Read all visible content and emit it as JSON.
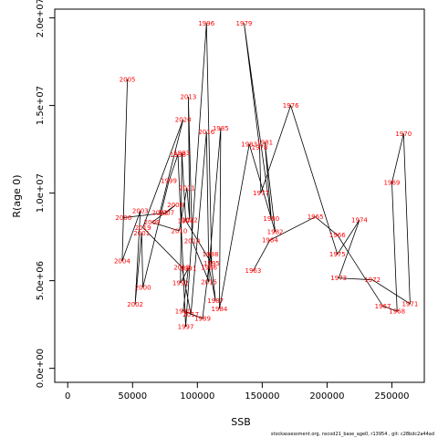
{
  "chart_data": {
    "type": "line",
    "title": "",
    "xlabel": "SSB",
    "ylabel": "R(age 0)",
    "xlim": [
      -10000,
      275000
    ],
    "ylim": [
      -800000,
      20500000
    ],
    "x_ticks": [
      0,
      50000,
      100000,
      150000,
      200000,
      250000
    ],
    "x_tick_labels": [
      "0",
      "50000",
      "100000",
      "150000",
      "200000",
      "250000"
    ],
    "y_ticks": [
      0,
      5000000,
      10000000,
      15000000,
      20000000
    ],
    "y_tick_labels": [
      "0.0e+00",
      "5.0e+06",
      "1.0e+07",
      "1.5e+07",
      "2.0e+07"
    ],
    "grid": false,
    "line_color": "#000000",
    "label_color": "#ff0000",
    "footer": "stockassessment.org, nscod21_base_age0, r13954 , git: c28bdc2a44ad",
    "series": [
      {
        "points": [
          {
            "year": "1963",
            "x": 143000,
            "y": 5570000
          },
          {
            "year": "1964",
            "x": 156000,
            "y": 7320000
          },
          {
            "year": "1965",
            "x": 191000,
            "y": 8640000
          },
          {
            "year": "1966",
            "x": 208000,
            "y": 7600000
          },
          {
            "year": "1967",
            "x": 243000,
            "y": 3560000
          },
          {
            "year": "1968",
            "x": 254000,
            "y": 3260000
          },
          {
            "year": "1969",
            "x": 250000,
            "y": 10600000
          },
          {
            "year": "1970",
            "x": 259000,
            "y": 13400000
          },
          {
            "year": "1971",
            "x": 264000,
            "y": 3680000
          },
          {
            "year": "1972",
            "x": 235000,
            "y": 5050000
          },
          {
            "year": "1973",
            "x": 209000,
            "y": 5150000
          },
          {
            "year": "1974",
            "x": 225000,
            "y": 8460000
          },
          {
            "year": "1975",
            "x": 208000,
            "y": 6510000
          },
          {
            "year": "1976",
            "x": 172000,
            "y": 15000000
          },
          {
            "year": "1977",
            "x": 149000,
            "y": 10000000
          },
          {
            "year": "1978",
            "x": 148000,
            "y": 12600000
          },
          {
            "year": "1979",
            "x": 136000,
            "y": 19700000
          },
          {
            "year": "1980",
            "x": 157000,
            "y": 8540000
          },
          {
            "year": "1981",
            "x": 152000,
            "y": 12900000
          },
          {
            "year": "1982",
            "x": 160000,
            "y": 7790000
          },
          {
            "year": "1983",
            "x": 140000,
            "y": 12800000
          },
          {
            "year": "1984",
            "x": 117000,
            "y": 3400000
          },
          {
            "year": "1985",
            "x": 118000,
            "y": 13700000
          },
          {
            "year": "1986",
            "x": 109000,
            "y": 5770000
          },
          {
            "year": "1987",
            "x": 114000,
            "y": 3850000
          },
          {
            "year": "1988",
            "x": 110000,
            "y": 6520000
          },
          {
            "year": "1989",
            "x": 104000,
            "y": 2850000
          },
          {
            "year": "1990",
            "x": 89000,
            "y": 3270000
          },
          {
            "year": "1991",
            "x": 93000,
            "y": 5710000
          },
          {
            "year": "1992",
            "x": 87000,
            "y": 4870000
          },
          {
            "year": "1993",
            "x": 88000,
            "y": 12300000
          },
          {
            "year": "1994",
            "x": 91000,
            "y": 8430000
          },
          {
            "year": "1995",
            "x": 111000,
            "y": 5990000
          },
          {
            "year": "1996",
            "x": 107000,
            "y": 19700000
          },
          {
            "year": "1997",
            "x": 91000,
            "y": 2370000
          },
          {
            "year": "1998",
            "x": 85000,
            "y": 12200000
          },
          {
            "year": "1999",
            "x": 78000,
            "y": 10700000
          },
          {
            "year": "2000",
            "x": 58000,
            "y": 4620000
          },
          {
            "year": "2001",
            "x": 57000,
            "y": 7720000
          },
          {
            "year": "2002",
            "x": 52000,
            "y": 3660000
          },
          {
            "year": "2003",
            "x": 56000,
            "y": 8980000
          },
          {
            "year": "2004",
            "x": 42000,
            "y": 6130000
          },
          {
            "year": "2005",
            "x": 46000,
            "y": 16500000
          },
          {
            "year": "2006",
            "x": 43000,
            "y": 8600000
          },
          {
            "year": "2007",
            "x": 76000,
            "y": 8880000
          },
          {
            "year": "2008",
            "x": 83000,
            "y": 9320000
          },
          {
            "year": "2009",
            "x": 65000,
            "y": 8330000
          },
          {
            "year": "2010",
            "x": 86000,
            "y": 7850000
          },
          {
            "year": "2011",
            "x": 92000,
            "y": 10300000
          },
          {
            "year": "2012",
            "x": 94000,
            "y": 8480000
          },
          {
            "year": "2013",
            "x": 93000,
            "y": 15500000
          },
          {
            "year": "2014",
            "x": 96000,
            "y": 7260000
          },
          {
            "year": "2015",
            "x": 109000,
            "y": 4940000
          },
          {
            "year": "2016",
            "x": 107000,
            "y": 13500000
          },
          {
            "year": "2017",
            "x": 95000,
            "y": 3070000
          },
          {
            "year": "2018",
            "x": 88000,
            "y": 5770000
          },
          {
            "year": "2019",
            "x": 58000,
            "y": 8040000
          },
          {
            "year": "2020",
            "x": 89000,
            "y": 14200000
          },
          {
            "year": "2021",
            "x": 71000,
            "y": 8880000
          }
        ]
      }
    ]
  }
}
